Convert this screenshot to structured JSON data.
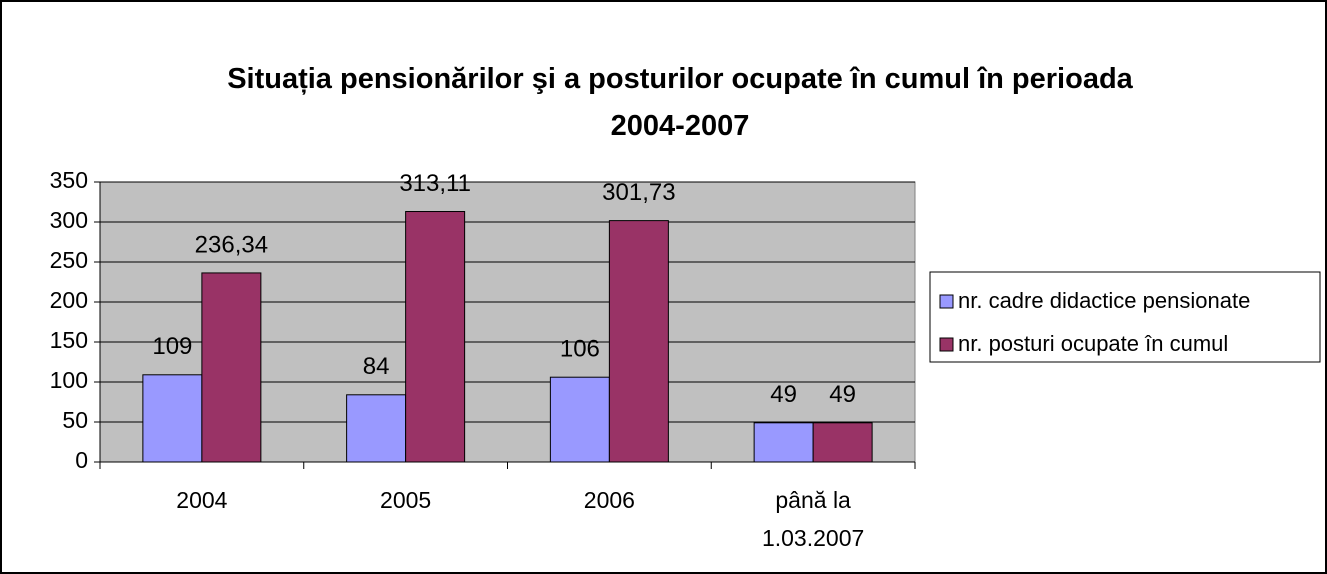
{
  "chart_data": {
    "type": "bar",
    "title": "Situația pensionărilor şi a posturilor ocupate în cumul în perioada 2004-2007",
    "categories": [
      "2004",
      "2005",
      "2006",
      "până la 1.03.2007"
    ],
    "series": [
      {
        "name": "nr. cadre didactice pensionate",
        "color": "#9999ff",
        "values": [
          109,
          84,
          106,
          49
        ]
      },
      {
        "name": "nr. posturi ocupate în cumul",
        "color": "#993366",
        "values": [
          236.34,
          313.11,
          301.73,
          49
        ],
        "value_labels": [
          "236,34",
          "313,11",
          "301,73",
          "49"
        ]
      }
    ],
    "ylim": [
      0,
      350
    ],
    "yticks": [
      0,
      50,
      100,
      150,
      200,
      250,
      300,
      350
    ],
    "grid": true,
    "legend": "right",
    "plot_background": "#c0c0c0"
  }
}
